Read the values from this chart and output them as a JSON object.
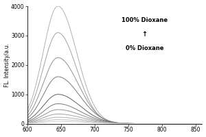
{
  "xlabel": "",
  "ylabel": "FL. Intensity/a.u.",
  "xlim": [
    600,
    860
  ],
  "ylim": [
    0,
    4000
  ],
  "xticks": [
    600,
    650,
    700,
    750,
    800,
    850
  ],
  "yticks": [
    0,
    1000,
    2000,
    3000,
    4000
  ],
  "peak_wavelength": 645,
  "x_start": 600,
  "x_end": 860,
  "annotation_top": "100% Dioxane",
  "annotation_arrow": "↑",
  "annotation_bottom": "0% Dioxane",
  "curves": [
    {
      "peak": 4000,
      "sigma_l": 22,
      "sigma_r": 28,
      "color": "#b0b0b0"
    },
    {
      "peak": 3100,
      "sigma_l": 22,
      "sigma_r": 28,
      "color": "#a0a0a0"
    },
    {
      "peak": 2250,
      "sigma_l": 22,
      "sigma_r": 30,
      "color": "#909090"
    },
    {
      "peak": 1600,
      "sigma_l": 22,
      "sigma_r": 32,
      "color": "#787878"
    },
    {
      "peak": 1000,
      "sigma_l": 22,
      "sigma_r": 33,
      "color": "#606060"
    },
    {
      "peak": 680,
      "sigma_l": 22,
      "sigma_r": 34,
      "color": "#787878"
    },
    {
      "peak": 480,
      "sigma_l": 22,
      "sigma_r": 35,
      "color": "#909090"
    },
    {
      "peak": 330,
      "sigma_l": 22,
      "sigma_r": 36,
      "color": "#a0a0a0"
    },
    {
      "peak": 220,
      "sigma_l": 22,
      "sigma_r": 37,
      "color": "#b0b0b0"
    },
    {
      "peak": 140,
      "sigma_l": 22,
      "sigma_r": 38,
      "color": "#c0c0c0"
    },
    {
      "peak": 80,
      "sigma_l": 22,
      "sigma_r": 39,
      "color": "#d0d0d0"
    }
  ],
  "background_color": "#ffffff",
  "figsize": [
    3.0,
    2.0
  ],
  "dpi": 100
}
